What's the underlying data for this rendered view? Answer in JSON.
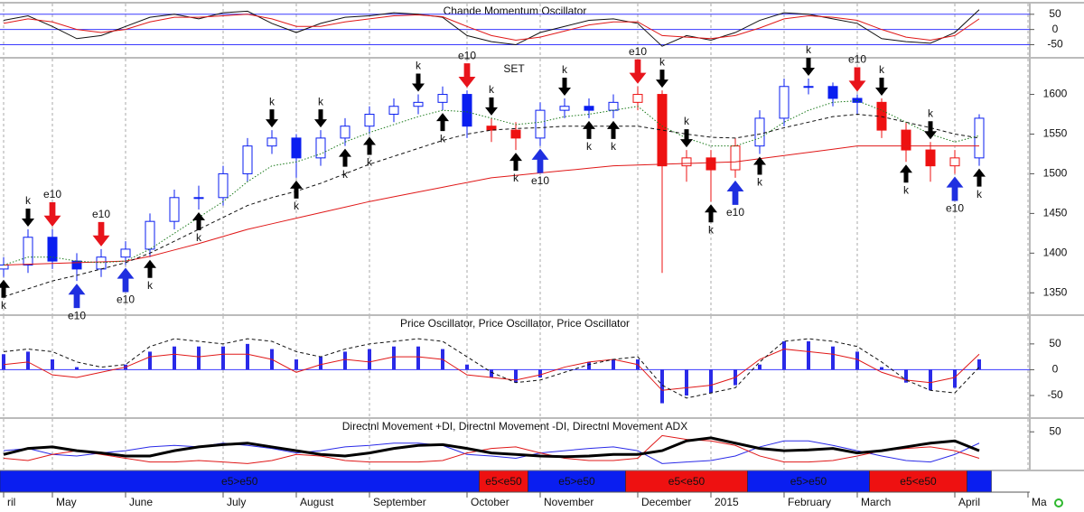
{
  "x_axis": {
    "categories": [
      "ril",
      null,
      "May",
      null,
      null,
      "June",
      null,
      null,
      null,
      "July",
      null,
      null,
      "August",
      null,
      null,
      "September",
      null,
      null,
      null,
      "October",
      null,
      null,
      "November",
      null,
      null,
      null,
      "December",
      null,
      null,
      "2015",
      null,
      null,
      "February",
      null,
      null,
      "March",
      null,
      null,
      null,
      "April",
      null,
      null,
      "Ma"
    ]
  },
  "chart_data": [
    {
      "type": "line",
      "title": "Chande Momentum Oscillator",
      "ylim": [
        -90,
        85
      ],
      "yticks": [
        50,
        0,
        -50
      ],
      "reference_lines": [
        50,
        0,
        -50
      ],
      "reference_color": "#3a3aff",
      "series": [
        {
          "color": "#111111",
          "style": "solid",
          "width": 1,
          "values": [
            30,
            45,
            10,
            -30,
            -20,
            10,
            40,
            50,
            35,
            55,
            60,
            20,
            -10,
            20,
            40,
            45,
            55,
            50,
            40,
            -20,
            -40,
            -50,
            -10,
            10,
            30,
            35,
            20,
            -55,
            -20,
            -35,
            -10,
            30,
            55,
            50,
            35,
            20,
            -30,
            -40,
            -45,
            -10,
            65,
            null,
            null
          ]
        },
        {
          "color": "#e01818",
          "style": "solid",
          "width": 1,
          "values": [
            20,
            35,
            25,
            0,
            -10,
            0,
            25,
            40,
            40,
            45,
            50,
            35,
            10,
            10,
            25,
            35,
            45,
            48,
            42,
            10,
            -20,
            -35,
            -25,
            -5,
            15,
            25,
            25,
            -20,
            -25,
            -30,
            -20,
            5,
            35,
            45,
            40,
            30,
            0,
            -25,
            -35,
            -20,
            35,
            null,
            null
          ]
        }
      ]
    },
    {
      "type": "candlestick",
      "symbol": "SET",
      "ylim": [
        1323,
        1645
      ],
      "yticks": [
        1350,
        1400,
        1450,
        1500,
        1550,
        1600
      ],
      "open": [
        1380,
        1385,
        1420,
        1390,
        1380,
        1395,
        1405,
        1440,
        1470,
        1470,
        1500,
        1535,
        1545,
        1520,
        1545,
        1560,
        1575,
        1585,
        1590,
        1600,
        1560,
        1555,
        1545,
        1580,
        1585,
        1580,
        1590,
        1600,
        1510,
        1520,
        1505,
        1535,
        1570,
        1610,
        1610,
        1595,
        1590,
        1555,
        1530,
        1510,
        1520,
        null,
        null
      ],
      "high": [
        1395,
        1430,
        1430,
        1400,
        1405,
        1415,
        1450,
        1480,
        1485,
        1510,
        1545,
        1555,
        1550,
        1555,
        1570,
        1585,
        1595,
        1600,
        1610,
        1605,
        1570,
        1565,
        1590,
        1595,
        1595,
        1600,
        1610,
        1605,
        1530,
        1530,
        1545,
        1580,
        1620,
        1620,
        1615,
        1600,
        1595,
        1565,
        1540,
        1530,
        1575,
        null,
        null
      ],
      "low": [
        1370,
        1375,
        1380,
        1365,
        1370,
        1385,
        1395,
        1430,
        1455,
        1460,
        1490,
        1525,
        1495,
        1510,
        1535,
        1550,
        1565,
        1575,
        1580,
        1545,
        1540,
        1530,
        1535,
        1570,
        1570,
        1570,
        1580,
        1375,
        1490,
        1465,
        1495,
        1525,
        1560,
        1600,
        1585,
        1575,
        1545,
        1515,
        1490,
        1500,
        1510,
        null,
        null
      ],
      "close": [
        1385,
        1420,
        1390,
        1380,
        1395,
        1405,
        1440,
        1470,
        1470,
        1500,
        1535,
        1545,
        1520,
        1545,
        1560,
        1575,
        1585,
        1590,
        1600,
        1560,
        1555,
        1545,
        1580,
        1585,
        1580,
        1590,
        1600,
        1510,
        1520,
        1505,
        1535,
        1570,
        1610,
        1610,
        1595,
        1590,
        1555,
        1530,
        1510,
        1520,
        1570,
        null,
        null
      ],
      "series": [
        {
          "color": "#e01818",
          "style": "solid",
          "width": 1,
          "values": [
            1385,
            1386,
            1387,
            1388,
            1389,
            1390,
            1396,
            1404,
            1412,
            1421,
            1430,
            1437,
            1444,
            1451,
            1458,
            1465,
            1471,
            1477,
            1483,
            1489,
            1495,
            1498,
            1501,
            1504,
            1507,
            1510,
            1511,
            1512,
            1513,
            1514,
            1515,
            1519,
            1523,
            1527,
            1531,
            1535,
            1535,
            1535,
            1535,
            1535,
            1535,
            null,
            null
          ]
        },
        {
          "color": "#111111",
          "style": "dashed",
          "width": 1,
          "values": [
            1345,
            1355,
            1365,
            1372,
            1380,
            1388,
            1400,
            1415,
            1430,
            1445,
            1460,
            1470,
            1478,
            1488,
            1500,
            1512,
            1522,
            1532,
            1542,
            1550,
            1555,
            1557,
            1558,
            1560,
            1560,
            1560,
            1560,
            1555,
            1550,
            1546,
            1545,
            1550,
            1558,
            1565,
            1572,
            1575,
            1572,
            1565,
            1558,
            1550,
            1545,
            null,
            null
          ]
        },
        {
          "color": "#1a7a1a",
          "style": "dotted",
          "width": 1,
          "values": [
            1385,
            1395,
            1395,
            1390,
            1388,
            1390,
            1405,
            1425,
            1445,
            1465,
            1490,
            1510,
            1515,
            1525,
            1540,
            1552,
            1562,
            1572,
            1580,
            1578,
            1570,
            1562,
            1565,
            1572,
            1575,
            1580,
            1585,
            1560,
            1545,
            1535,
            1535,
            1545,
            1565,
            1580,
            1590,
            1592,
            1580,
            1565,
            1550,
            1540,
            1548,
            null,
            null
          ]
        }
      ],
      "annotations": [
        {
          "at": 2,
          "signal": "sell",
          "label": "e10",
          "color": "#e8141b"
        },
        {
          "at": 3,
          "signal": "buy",
          "label": "e10",
          "color": "#1f2fe0"
        },
        {
          "at": 4,
          "signal": "sell",
          "label": "e10",
          "color": "#e8141b"
        },
        {
          "at": 5,
          "signal": "buy",
          "label": "e10",
          "color": "#1f2fe0"
        },
        {
          "at": 19,
          "signal": "sell",
          "label": "e10",
          "color": "#e8141b"
        },
        {
          "at": 22,
          "signal": "buy",
          "label": "e10",
          "color": "#1f2fe0"
        },
        {
          "at": 26,
          "signal": "sell",
          "label": "e10",
          "color": "#e8141b"
        },
        {
          "at": 30,
          "signal": "buy",
          "label": "e10",
          "color": "#1f2fe0"
        },
        {
          "at": 35,
          "signal": "sell",
          "label": "e10",
          "color": "#e8141b"
        },
        {
          "at": 39,
          "signal": "buy",
          "label": "e10",
          "color": "#1f2fe0"
        },
        {
          "at": 0,
          "signal": "buy",
          "label": "k",
          "color": "#000000"
        },
        {
          "at": 6,
          "signal": "buy",
          "label": "k",
          "color": "#000000"
        },
        {
          "at": 8,
          "signal": "buy",
          "label": "k",
          "color": "#000000"
        },
        {
          "at": 12,
          "signal": "buy",
          "label": "k",
          "color": "#000000"
        },
        {
          "at": 14,
          "signal": "buy",
          "label": "k",
          "color": "#000000"
        },
        {
          "at": 15,
          "signal": "buy",
          "label": "k",
          "color": "#000000"
        },
        {
          "at": 18,
          "signal": "buy",
          "label": "k",
          "color": "#000000"
        },
        {
          "at": 21,
          "signal": "buy",
          "label": "k",
          "color": "#000000"
        },
        {
          "at": 24,
          "signal": "buy",
          "label": "k",
          "color": "#000000"
        },
        {
          "at": 25,
          "signal": "buy",
          "label": "k",
          "color": "#000000"
        },
        {
          "at": 29,
          "signal": "buy",
          "label": "k",
          "color": "#000000"
        },
        {
          "at": 31,
          "signal": "buy",
          "label": "k",
          "color": "#000000"
        },
        {
          "at": 37,
          "signal": "buy",
          "label": "k",
          "color": "#000000"
        },
        {
          "at": 40,
          "signal": "buy",
          "label": "k",
          "color": "#000000"
        },
        {
          "at": 1,
          "signal": "sell",
          "label": "k",
          "color": "#000000"
        },
        {
          "at": 11,
          "signal": "sell",
          "label": "k",
          "color": "#000000"
        },
        {
          "at": 13,
          "signal": "sell",
          "label": "k",
          "color": "#000000"
        },
        {
          "at": 17,
          "signal": "sell",
          "label": "k",
          "color": "#000000"
        },
        {
          "at": 20,
          "signal": "sell",
          "label": "k",
          "color": "#000000"
        },
        {
          "at": 23,
          "signal": "sell",
          "label": "k",
          "color": "#000000"
        },
        {
          "at": 27,
          "signal": "sell",
          "label": "k",
          "color": "#000000"
        },
        {
          "at": 28,
          "signal": "sell",
          "label": "k",
          "color": "#000000"
        },
        {
          "at": 33,
          "signal": "sell",
          "label": "k",
          "color": "#000000"
        },
        {
          "at": 36,
          "signal": "sell",
          "label": "k",
          "color": "#000000"
        },
        {
          "at": 38,
          "signal": "sell",
          "label": "k",
          "color": "#000000"
        }
      ]
    },
    {
      "type": "histogram_line",
      "title": "Price Oscillator, Price Oscillator, Price Oscillator",
      "ylim": [
        -92,
        104
      ],
      "yticks": [
        50,
        0,
        -50
      ],
      "reference_lines": [
        0
      ],
      "reference_color": "#3a3aff",
      "series": [
        {
          "kind": "bar",
          "color": "#2a2ae8",
          "values": [
            30,
            35,
            20,
            5,
            0,
            10,
            35,
            45,
            45,
            45,
            50,
            40,
            20,
            25,
            35,
            40,
            45,
            45,
            40,
            10,
            -15,
            -25,
            -15,
            0,
            15,
            20,
            20,
            -65,
            -50,
            -45,
            -30,
            10,
            55,
            55,
            45,
            35,
            5,
            -25,
            -40,
            -35,
            20,
            null,
            null
          ]
        },
        {
          "color": "#e01818",
          "style": "solid",
          "width": 1,
          "values": [
            10,
            15,
            -10,
            -15,
            -5,
            5,
            25,
            30,
            25,
            30,
            30,
            20,
            -5,
            10,
            20,
            15,
            25,
            25,
            20,
            -10,
            -15,
            -20,
            -10,
            5,
            15,
            20,
            10,
            -40,
            -35,
            -30,
            -15,
            20,
            40,
            35,
            30,
            20,
            -5,
            -20,
            -25,
            -15,
            30,
            null,
            null
          ]
        },
        {
          "color": "#111111",
          "style": "dashed",
          "width": 1,
          "values": [
            35,
            40,
            35,
            15,
            5,
            10,
            45,
            60,
            55,
            50,
            60,
            55,
            35,
            25,
            40,
            50,
            55,
            60,
            55,
            25,
            -5,
            -25,
            -20,
            -5,
            10,
            20,
            25,
            -30,
            -55,
            -45,
            -35,
            15,
            55,
            60,
            55,
            45,
            15,
            -20,
            -40,
            -45,
            5,
            null,
            null
          ]
        }
      ]
    },
    {
      "type": "line",
      "title": "Directnl Movement +DI, Directnl Movement -DI, Directnl Movement ADX",
      "ylim": [
        0,
        67
      ],
      "yticks": [
        50
      ],
      "series": [
        {
          "color": "#2a2ae8",
          "style": "solid",
          "width": 1,
          "values": [
            25,
            28,
            20,
            18,
            22,
            25,
            30,
            32,
            30,
            35,
            32,
            28,
            22,
            25,
            30,
            32,
            35,
            35,
            32,
            20,
            18,
            15,
            22,
            25,
            28,
            30,
            25,
            8,
            10,
            12,
            18,
            30,
            38,
            38,
            32,
            25,
            18,
            12,
            10,
            20,
            35,
            null,
            null
          ]
        },
        {
          "color": "#e01818",
          "style": "solid",
          "width": 1,
          "values": [
            15,
            12,
            20,
            25,
            20,
            15,
            10,
            10,
            12,
            10,
            8,
            12,
            20,
            18,
            12,
            10,
            10,
            10,
            12,
            22,
            28,
            30,
            22,
            15,
            12,
            12,
            15,
            45,
            40,
            38,
            32,
            18,
            10,
            10,
            12,
            18,
            25,
            28,
            30,
            25,
            15,
            null,
            null
          ]
        },
        {
          "color": "#000000",
          "style": "solid",
          "width": 3,
          "values": [
            20,
            28,
            30,
            25,
            22,
            18,
            18,
            25,
            30,
            33,
            35,
            30,
            25,
            20,
            18,
            22,
            28,
            32,
            33,
            28,
            22,
            20,
            18,
            17,
            18,
            20,
            20,
            25,
            38,
            42,
            35,
            28,
            25,
            26,
            28,
            22,
            25,
            30,
            35,
            38,
            25,
            null,
            null
          ]
        }
      ]
    }
  ],
  "regimes": [
    {
      "label": "e5>e50",
      "color": "#0a1ef0",
      "from": 0,
      "to": 19
    },
    {
      "label": "e5<e50",
      "color": "#ee1111",
      "from": 20,
      "to": 21
    },
    {
      "label": "e5>e50",
      "color": "#0a1ef0",
      "from": 22,
      "to": 25
    },
    {
      "label": "e5<e50",
      "color": "#ee1111",
      "from": 26,
      "to": 30
    },
    {
      "label": "e5>e50",
      "color": "#0a1ef0",
      "from": 31,
      "to": 35
    },
    {
      "label": "e5<e50",
      "color": "#ee1111",
      "from": 36,
      "to": 39
    },
    {
      "color": "#0a1ef0",
      "from": 40,
      "to": 40
    }
  ]
}
